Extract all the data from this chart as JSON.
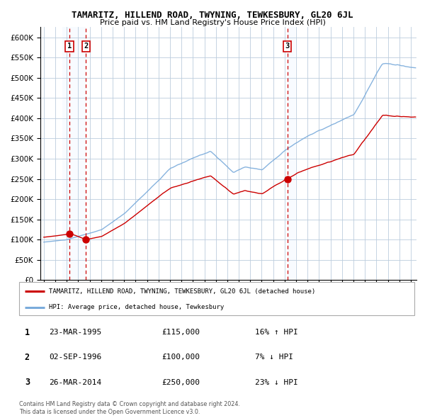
{
  "title": "TAMARITZ, HILLEND ROAD, TWYNING, TEWKESBURY, GL20 6JL",
  "subtitle": "Price paid vs. HM Land Registry's House Price Index (HPI)",
  "sales": [
    {
      "label": "1",
      "date": "23-MAR-1995",
      "price": 115000,
      "pct": "16%",
      "direction": "↑"
    },
    {
      "label": "2",
      "date": "02-SEP-1996",
      "price": 100000,
      "pct": "7%",
      "direction": "↓"
    },
    {
      "label": "3",
      "date": "26-MAR-2014",
      "price": 250000,
      "pct": "23%",
      "direction": "↓"
    }
  ],
  "legend_property": "TAMARITZ, HILLEND ROAD, TWYNING, TEWKESBURY, GL20 6JL (detached house)",
  "legend_hpi": "HPI: Average price, detached house, Tewkesbury",
  "footnote1": "Contains HM Land Registry data © Crown copyright and database right 2024.",
  "footnote2": "This data is licensed under the Open Government Licence v3.0.",
  "hpi_color": "#7aabdb",
  "property_color": "#cc0000",
  "dot_color": "#cc0000",
  "vline_color": "#cc0000",
  "shading_color": "#ddeeff",
  "grid_color": "#bbccdd",
  "bg_color": "#ffffff",
  "ylim": [
    0,
    625000
  ],
  "yticks": [
    0,
    50000,
    100000,
    150000,
    200000,
    250000,
    300000,
    350000,
    400000,
    450000,
    500000,
    550000,
    600000
  ],
  "start_year": 1993.0,
  "end_year": 2025.5,
  "sale1_year": 1995.22,
  "sale2_year": 1996.67,
  "sale3_year": 2014.23,
  "sale1_price": 115000,
  "sale2_price": 100000,
  "sale3_price": 250000
}
